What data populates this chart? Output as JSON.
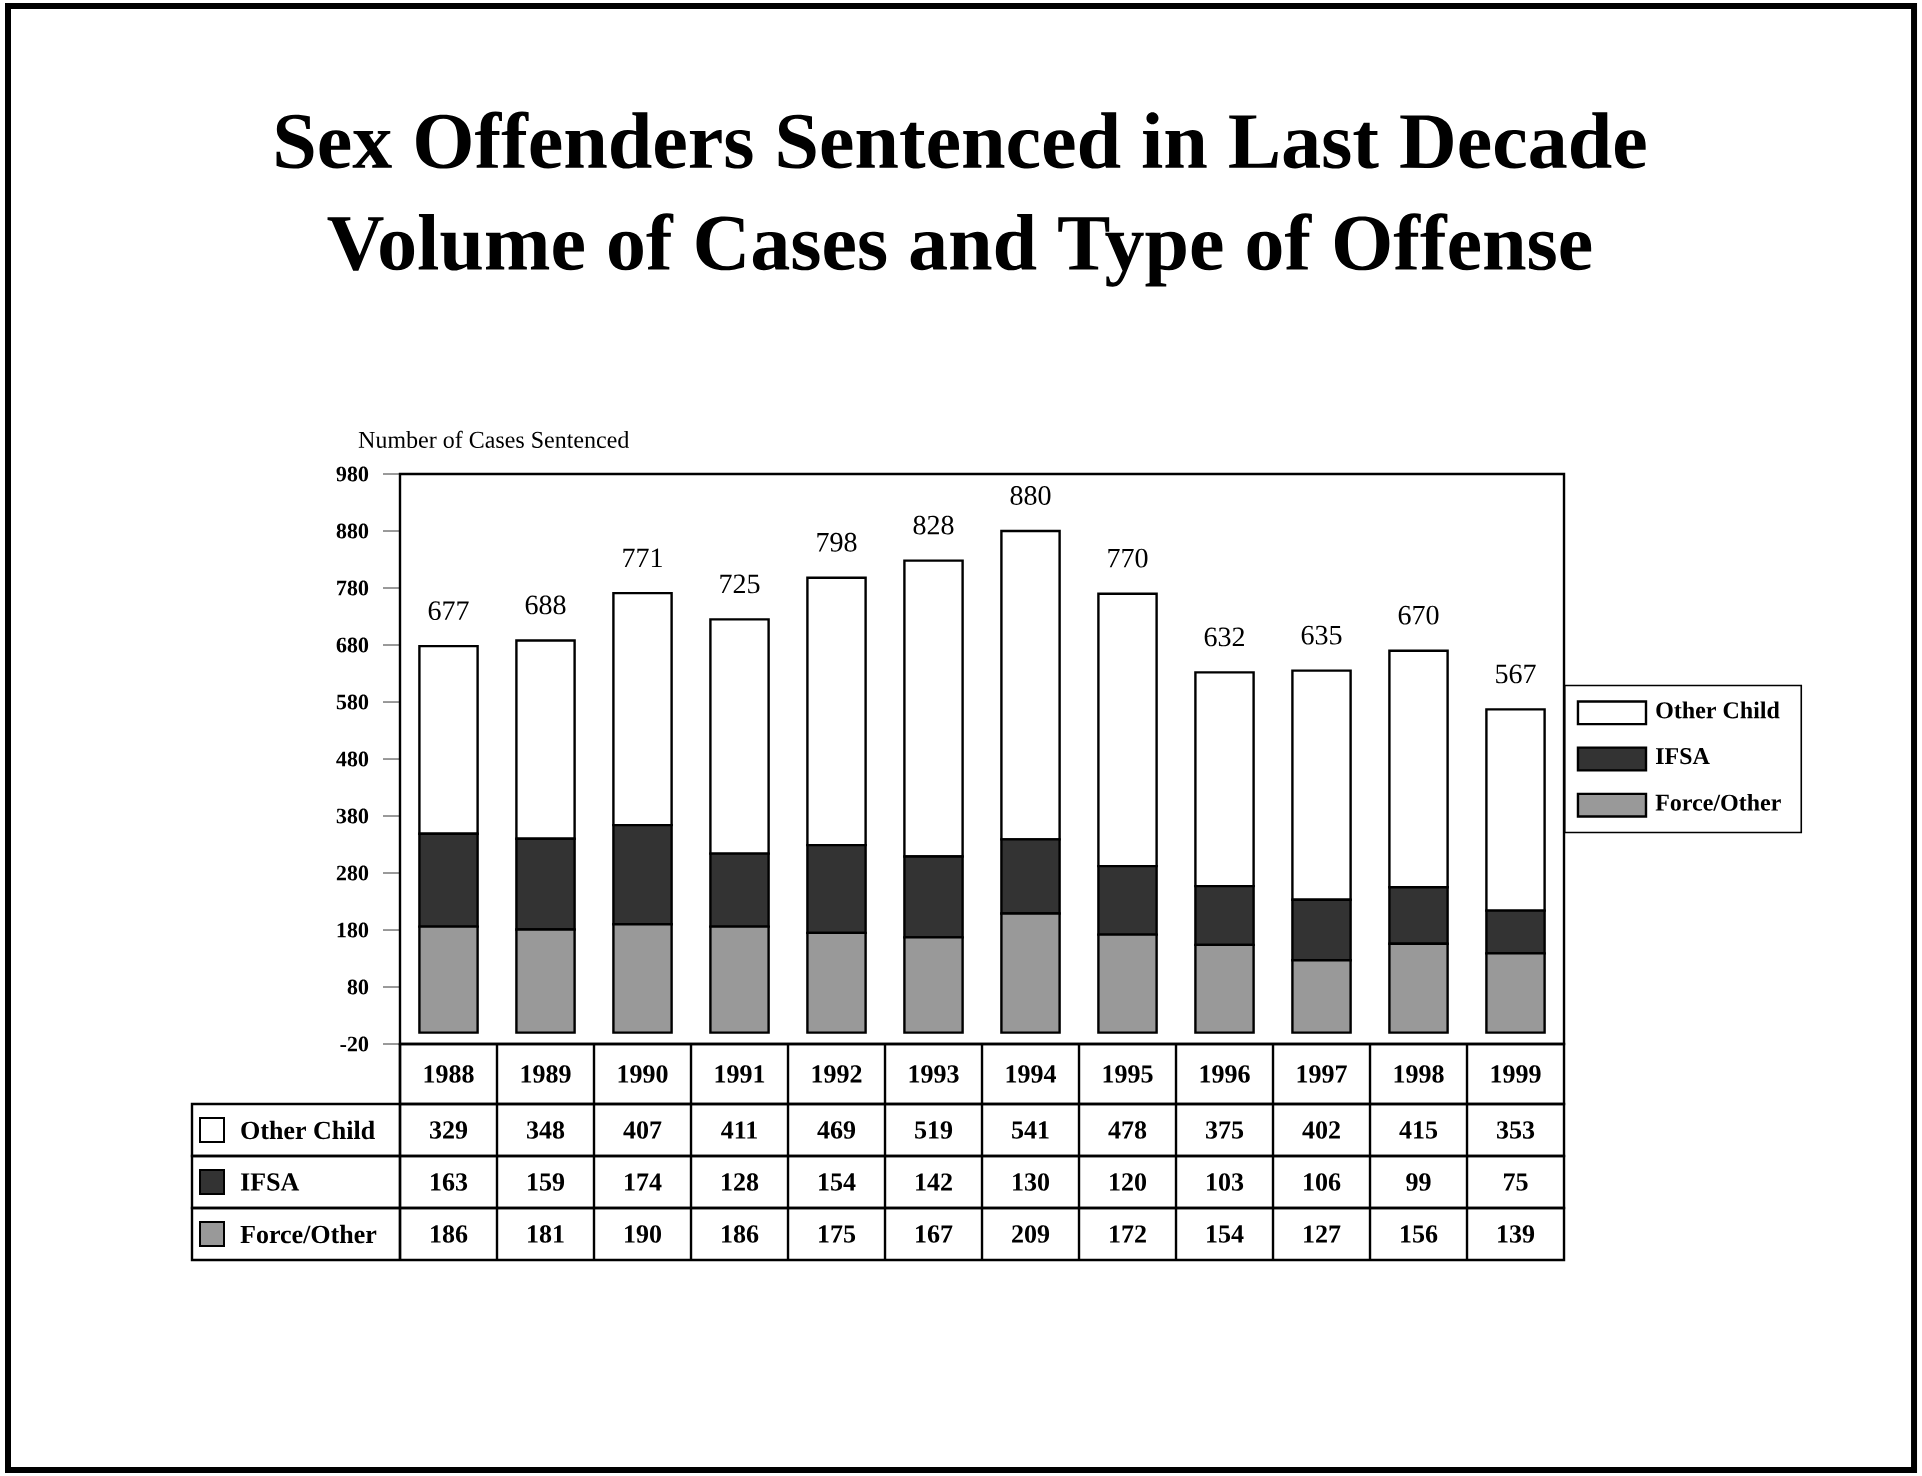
{
  "chart_data": {
    "type": "bar",
    "stacked": true,
    "title": "Sex Offenders Sentenced in Last Decade",
    "subtitle": "Volume of Cases and Type of Offense",
    "ylabel": "Number of Cases Sentenced",
    "categories": [
      "1988",
      "1989",
      "1990",
      "1991",
      "1992",
      "1993",
      "1994",
      "1995",
      "1996",
      "1997",
      "1998",
      "1999"
    ],
    "series": [
      {
        "name": "Force/Other",
        "color": "#999999",
        "values": [
          186,
          181,
          190,
          186,
          175,
          167,
          209,
          172,
          154,
          127,
          156,
          139
        ]
      },
      {
        "name": "IFSA",
        "color": "#333333",
        "values": [
          163,
          159,
          174,
          128,
          154,
          142,
          130,
          120,
          103,
          106,
          99,
          75
        ]
      },
      {
        "name": "Other Child",
        "color": "#ffffff",
        "values": [
          329,
          348,
          407,
          411,
          469,
          519,
          541,
          478,
          375,
          402,
          415,
          353
        ]
      }
    ],
    "totals": [
      "677",
      "688",
      "771",
      "725",
      "798",
      "828",
      "880",
      "770",
      "632",
      "635",
      "670",
      "567"
    ],
    "ylim": [
      -20,
      980
    ],
    "yticks": [
      -20,
      80,
      180,
      280,
      380,
      480,
      580,
      680,
      780,
      880,
      980
    ],
    "data_labels": true,
    "legend": "right"
  }
}
